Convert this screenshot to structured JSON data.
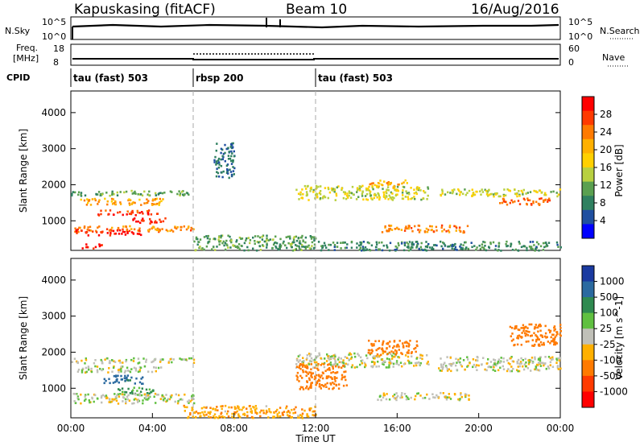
{
  "header": {
    "station": "Kapuskasing (fitACF)",
    "beam": "Beam 10",
    "date": "16/Aug/2016"
  },
  "top_panels": {
    "nsky_label": "N.Sky",
    "nsky_ticks": [
      "10^5",
      "10^0"
    ],
    "nsearch_label": "N.Search",
    "nsearch_ticks": [
      "10^5",
      "10^0"
    ],
    "freq_label_1": "Freq.",
    "freq_label_2": "[MHz]",
    "freq_ticks": [
      "18",
      "8"
    ],
    "nave_label": "Nave",
    "nave_ticks": [
      "60",
      "0"
    ],
    "cpid_label": "CPID",
    "cpid_segments": [
      {
        "label": "tau (fast) 503",
        "start_hour": 0,
        "end_hour": 6
      },
      {
        "label": "rbsp 200",
        "start_hour": 6,
        "end_hour": 12
      },
      {
        "label": "tau (fast) 503",
        "start_hour": 12,
        "end_hour": 24
      }
    ]
  },
  "axes": {
    "ylabel": "Slant Range [km]",
    "xlabel": "Time UT",
    "y_ticks": [
      1000,
      2000,
      3000,
      4000
    ],
    "x_ticks": [
      "00:00",
      "04:00",
      "08:00",
      "12:00",
      "16:00",
      "20:00",
      "00:00"
    ]
  },
  "power_colorbar": {
    "label": "Power [dB]",
    "ticks": [
      "28",
      "24",
      "20",
      "16",
      "12",
      "8",
      "4"
    ],
    "colors": [
      "#ff0000",
      "#ff3a00",
      "#ff7a00",
      "#ffb000",
      "#ffd000",
      "#b8d040",
      "#5aa050",
      "#2f8060",
      "#1f4fa0",
      "#0000ff"
    ]
  },
  "velocity_colorbar": {
    "label": "Velocity [m s^-1]",
    "ticks": [
      "1000",
      "500",
      "100",
      "25",
      "-25",
      "-100",
      "-500",
      "-1000"
    ],
    "colors": [
      "#1a3aa0",
      "#2b6aa0",
      "#2f8a50",
      "#60c040",
      "#c0c0b8",
      "#ffb000",
      "#ff7a00",
      "#ff3a00",
      "#ff0000"
    ]
  },
  "chart_data": {
    "type": "heatmap",
    "x_unit": "hour UT",
    "y_unit": "km",
    "xlim": [
      0,
      24
    ],
    "ylim": [
      180,
      4600
    ],
    "vertical_markers_hours": [
      6,
      12
    ],
    "power_bands": [
      {
        "x0": 0.0,
        "x1": 6.0,
        "y0": 1720,
        "y1": 1860,
        "value_db": 10
      },
      {
        "x0": 0.3,
        "x1": 4.5,
        "y0": 1460,
        "y1": 1640,
        "value_db": 20
      },
      {
        "x0": 1.3,
        "x1": 4.3,
        "y0": 1180,
        "y1": 1320,
        "value_db": 26
      },
      {
        "x0": 2.8,
        "x1": 4.6,
        "y0": 950,
        "y1": 1100,
        "value_db": 28
      },
      {
        "x0": 0.1,
        "x1": 6.0,
        "y0": 720,
        "y1": 880,
        "value_db": 22
      },
      {
        "x0": 0.2,
        "x1": 3.5,
        "y0": 620,
        "y1": 770,
        "value_db": 28
      },
      {
        "x0": 0.5,
        "x1": 1.5,
        "y0": 250,
        "y1": 380,
        "value_db": 28
      },
      {
        "x0": 6.0,
        "x1": 12.0,
        "y0": 200,
        "y1": 620,
        "value_db": 10
      },
      {
        "x0": 7.0,
        "x1": 8.0,
        "y0": 2200,
        "y1": 3200,
        "value_db": 6
      },
      {
        "x0": 11.0,
        "x1": 17.5,
        "y0": 1600,
        "y1": 2000,
        "value_db": 14
      },
      {
        "x0": 14.5,
        "x1": 16.5,
        "y0": 1950,
        "y1": 2150,
        "value_db": 20
      },
      {
        "x0": 15.2,
        "x1": 19.5,
        "y0": 700,
        "y1": 900,
        "value_db": 22
      },
      {
        "x0": 18.0,
        "x1": 24.0,
        "y0": 1700,
        "y1": 1900,
        "value_db": 14
      },
      {
        "x0": 21.0,
        "x1": 23.5,
        "y0": 1450,
        "y1": 1650,
        "value_db": 24
      },
      {
        "x0": 12.0,
        "x1": 24.0,
        "y0": 200,
        "y1": 450,
        "value_db": 8
      }
    ],
    "velocity_bands": [
      {
        "x0": 0.0,
        "x1": 6.0,
        "y0": 1720,
        "y1": 1860,
        "value_ms": 0
      },
      {
        "x0": 0.3,
        "x1": 4.5,
        "y0": 1460,
        "y1": 1640,
        "value_ms": 0
      },
      {
        "x0": 1.5,
        "x1": 3.5,
        "y0": 1150,
        "y1": 1380,
        "value_ms": 300
      },
      {
        "x0": 2.2,
        "x1": 4.0,
        "y0": 850,
        "y1": 1050,
        "value_ms": 80
      },
      {
        "x0": 0.1,
        "x1": 6.0,
        "y0": 600,
        "y1": 880,
        "value_ms": 0
      },
      {
        "x0": 5.5,
        "x1": 12.0,
        "y0": 200,
        "y1": 550,
        "value_ms": -80
      },
      {
        "x0": 11.0,
        "x1": 17.5,
        "y0": 1600,
        "y1": 2000,
        "value_ms": 0
      },
      {
        "x0": 14.5,
        "x1": 17.0,
        "y0": 1950,
        "y1": 2350,
        "value_ms": -300
      },
      {
        "x0": 11.0,
        "x1": 13.5,
        "y0": 1000,
        "y1": 1700,
        "value_ms": -300
      },
      {
        "x0": 15.0,
        "x1": 19.5,
        "y0": 700,
        "y1": 900,
        "value_ms": 0
      },
      {
        "x0": 18.0,
        "x1": 24.0,
        "y0": 1500,
        "y1": 1900,
        "value_ms": 0
      },
      {
        "x0": 21.5,
        "x1": 24.0,
        "y0": 2200,
        "y1": 2800,
        "value_ms": -300
      }
    ]
  }
}
